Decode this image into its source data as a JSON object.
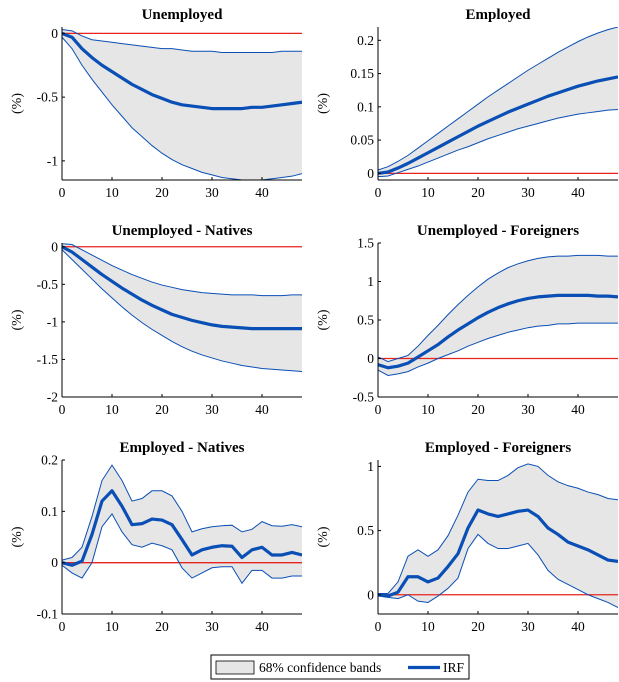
{
  "legend": {
    "band_label": "68% confidence bands",
    "irf_label": "IRF"
  },
  "colors": {
    "band": "#e6e6e6",
    "irf": "#0a4fb5",
    "zero": "#e8231e",
    "axis": "#000000"
  },
  "chart_data": [
    {
      "type": "area",
      "title": "Unemployed",
      "ylabel": "(%)",
      "xlim": [
        0,
        48
      ],
      "ylim": [
        -1.15,
        0.05
      ],
      "xticks": [
        0,
        10,
        20,
        30,
        40
      ],
      "xticklabels": [
        "0",
        "10",
        "20",
        "30",
        "40"
      ],
      "yticks": [
        -1,
        -0.5,
        0
      ],
      "yticklabels": [
        "-1",
        "-0.5",
        "0"
      ],
      "x": [
        0,
        2,
        4,
        6,
        8,
        10,
        12,
        14,
        16,
        18,
        20,
        22,
        24,
        26,
        28,
        30,
        32,
        34,
        36,
        38,
        40,
        42,
        44,
        46,
        48
      ],
      "series": [
        {
          "role": "irf",
          "values": [
            0,
            -0.03,
            -0.12,
            -0.19,
            -0.25,
            -0.3,
            -0.35,
            -0.4,
            -0.44,
            -0.48,
            -0.51,
            -0.54,
            -0.56,
            -0.57,
            -0.58,
            -0.59,
            -0.59,
            -0.59,
            -0.59,
            -0.58,
            -0.58,
            -0.57,
            -0.56,
            -0.55,
            -0.54
          ]
        },
        {
          "role": "upper",
          "values": [
            0.03,
            0.02,
            -0.02,
            -0.05,
            -0.06,
            -0.07,
            -0.08,
            -0.09,
            -0.1,
            -0.11,
            -0.12,
            -0.12,
            -0.13,
            -0.14,
            -0.14,
            -0.14,
            -0.15,
            -0.15,
            -0.15,
            -0.15,
            -0.15,
            -0.15,
            -0.14,
            -0.14,
            -0.14
          ]
        },
        {
          "role": "lower",
          "values": [
            -0.03,
            -0.12,
            -0.25,
            -0.36,
            -0.46,
            -0.56,
            -0.65,
            -0.74,
            -0.81,
            -0.88,
            -0.94,
            -0.99,
            -1.03,
            -1.06,
            -1.09,
            -1.11,
            -1.13,
            -1.14,
            -1.15,
            -1.15,
            -1.15,
            -1.14,
            -1.13,
            -1.12,
            -1.1
          ]
        }
      ]
    },
    {
      "type": "area",
      "title": "Employed",
      "ylabel": "(%)",
      "xlim": [
        0,
        48
      ],
      "ylim": [
        -0.01,
        0.22
      ],
      "xticks": [
        0,
        10,
        20,
        30,
        40
      ],
      "xticklabels": [
        "0",
        "10",
        "20",
        "30",
        "40"
      ],
      "yticks": [
        0,
        0.05,
        0.1,
        0.15,
        0.2
      ],
      "yticklabels": [
        "0",
        "0.05",
        "0.1",
        "0.15",
        "0.2"
      ],
      "x": [
        0,
        2,
        4,
        6,
        8,
        10,
        12,
        14,
        16,
        18,
        20,
        22,
        24,
        26,
        28,
        30,
        32,
        34,
        36,
        38,
        40,
        42,
        44,
        46,
        48
      ],
      "series": [
        {
          "role": "irf",
          "values": [
            0,
            0.002,
            0.008,
            0.015,
            0.023,
            0.031,
            0.039,
            0.047,
            0.055,
            0.063,
            0.071,
            0.078,
            0.085,
            0.092,
            0.098,
            0.104,
            0.11,
            0.116,
            0.121,
            0.126,
            0.131,
            0.135,
            0.139,
            0.142,
            0.145
          ]
        },
        {
          "role": "upper",
          "values": [
            0.005,
            0.01,
            0.018,
            0.027,
            0.038,
            0.049,
            0.06,
            0.071,
            0.082,
            0.093,
            0.104,
            0.115,
            0.125,
            0.135,
            0.145,
            0.155,
            0.164,
            0.173,
            0.182,
            0.19,
            0.198,
            0.205,
            0.211,
            0.216,
            0.22
          ]
        },
        {
          "role": "lower",
          "values": [
            -0.005,
            -0.004,
            0.001,
            0.006,
            0.011,
            0.017,
            0.023,
            0.029,
            0.035,
            0.04,
            0.046,
            0.052,
            0.057,
            0.062,
            0.067,
            0.071,
            0.075,
            0.079,
            0.083,
            0.086,
            0.089,
            0.091,
            0.093,
            0.095,
            0.096
          ]
        }
      ]
    },
    {
      "type": "area",
      "title": "Unemployed - Natives",
      "ylabel": "(%)",
      "xlim": [
        0,
        48
      ],
      "ylim": [
        -2,
        0.05
      ],
      "xticks": [
        0,
        10,
        20,
        30,
        40
      ],
      "xticklabels": [
        "0",
        "10",
        "20",
        "30",
        "40"
      ],
      "yticks": [
        -2,
        -1.5,
        -1,
        -0.5,
        0
      ],
      "yticklabels": [
        "-2",
        "-1.5",
        "-1",
        "-0.5",
        "0"
      ],
      "x": [
        0,
        2,
        4,
        6,
        8,
        10,
        12,
        14,
        16,
        18,
        20,
        22,
        24,
        26,
        28,
        30,
        32,
        34,
        36,
        38,
        40,
        42,
        44,
        46,
        48
      ],
      "series": [
        {
          "role": "irf",
          "values": [
            0,
            -0.07,
            -0.17,
            -0.27,
            -0.37,
            -0.46,
            -0.55,
            -0.63,
            -0.71,
            -0.78,
            -0.84,
            -0.9,
            -0.94,
            -0.98,
            -1.01,
            -1.04,
            -1.06,
            -1.07,
            -1.08,
            -1.09,
            -1.09,
            -1.09,
            -1.09,
            -1.09,
            -1.09
          ]
        },
        {
          "role": "upper",
          "values": [
            0.04,
            0.03,
            -0.04,
            -0.11,
            -0.18,
            -0.25,
            -0.31,
            -0.37,
            -0.42,
            -0.47,
            -0.51,
            -0.54,
            -0.57,
            -0.59,
            -0.61,
            -0.62,
            -0.63,
            -0.64,
            -0.64,
            -0.64,
            -0.65,
            -0.65,
            -0.65,
            -0.64,
            -0.64
          ]
        },
        {
          "role": "lower",
          "values": [
            -0.04,
            -0.17,
            -0.3,
            -0.43,
            -0.56,
            -0.68,
            -0.8,
            -0.91,
            -1.01,
            -1.1,
            -1.18,
            -1.26,
            -1.33,
            -1.39,
            -1.44,
            -1.48,
            -1.52,
            -1.55,
            -1.58,
            -1.6,
            -1.62,
            -1.63,
            -1.64,
            -1.65,
            -1.66
          ]
        }
      ]
    },
    {
      "type": "area",
      "title": "Unemployed - Foreigners",
      "ylabel": "(%)",
      "xlim": [
        0,
        48
      ],
      "ylim": [
        -0.5,
        1.5
      ],
      "xticks": [
        0,
        10,
        20,
        30,
        40
      ],
      "xticklabels": [
        "0",
        "10",
        "20",
        "30",
        "40"
      ],
      "yticks": [
        -0.5,
        0,
        0.5,
        1,
        1.5
      ],
      "yticklabels": [
        "-0.5",
        "0",
        "0.5",
        "1",
        "1.5"
      ],
      "x": [
        0,
        2,
        4,
        6,
        8,
        10,
        12,
        14,
        16,
        18,
        20,
        22,
        24,
        26,
        28,
        30,
        32,
        34,
        36,
        38,
        40,
        42,
        44,
        46,
        48
      ],
      "series": [
        {
          "role": "irf",
          "values": [
            -0.08,
            -0.12,
            -0.1,
            -0.06,
            0.02,
            0.1,
            0.18,
            0.28,
            0.37,
            0.45,
            0.53,
            0.6,
            0.66,
            0.71,
            0.75,
            0.78,
            0.8,
            0.81,
            0.82,
            0.82,
            0.82,
            0.82,
            0.81,
            0.81,
            0.8
          ]
        },
        {
          "role": "upper",
          "values": [
            0.02,
            -0.04,
            0.0,
            0.04,
            0.16,
            0.3,
            0.43,
            0.57,
            0.7,
            0.82,
            0.93,
            1.03,
            1.11,
            1.18,
            1.23,
            1.27,
            1.3,
            1.32,
            1.33,
            1.33,
            1.34,
            1.34,
            1.34,
            1.33,
            1.33
          ]
        },
        {
          "role": "lower",
          "values": [
            -0.15,
            -0.22,
            -0.2,
            -0.17,
            -0.11,
            -0.06,
            0.0,
            0.05,
            0.1,
            0.16,
            0.21,
            0.26,
            0.3,
            0.34,
            0.37,
            0.4,
            0.42,
            0.43,
            0.45,
            0.45,
            0.46,
            0.46,
            0.46,
            0.46,
            0.46
          ]
        }
      ]
    },
    {
      "type": "area",
      "title": "Employed - Natives",
      "ylabel": "(%)",
      "xlim": [
        0,
        48
      ],
      "ylim": [
        -0.1,
        0.2
      ],
      "xticks": [
        0,
        10,
        20,
        30,
        40
      ],
      "xticklabels": [
        "0",
        "10",
        "20",
        "30",
        "40"
      ],
      "yticks": [
        -0.1,
        0,
        0.1,
        0.2
      ],
      "yticklabels": [
        "-0.1",
        "0",
        "0.1",
        "0.2"
      ],
      "x": [
        0,
        2,
        4,
        6,
        8,
        10,
        12,
        14,
        16,
        18,
        20,
        22,
        24,
        26,
        28,
        30,
        32,
        34,
        36,
        38,
        40,
        42,
        44,
        46,
        48
      ],
      "series": [
        {
          "role": "irf",
          "values": [
            0,
            -0.005,
            0.003,
            0.055,
            0.12,
            0.14,
            0.11,
            0.074,
            0.076,
            0.085,
            0.083,
            0.074,
            0.045,
            0.015,
            0.025,
            0.03,
            0.033,
            0.032,
            0.01,
            0.025,
            0.03,
            0.015,
            0.015,
            0.02,
            0.015
          ]
        },
        {
          "role": "upper",
          "values": [
            0.005,
            0.01,
            0.03,
            0.09,
            0.16,
            0.19,
            0.16,
            0.12,
            0.125,
            0.14,
            0.14,
            0.13,
            0.1,
            0.06,
            0.066,
            0.07,
            0.072,
            0.073,
            0.06,
            0.065,
            0.08,
            0.072,
            0.071,
            0.074,
            0.07
          ]
        },
        {
          "role": "lower",
          "values": [
            -0.005,
            -0.02,
            -0.03,
            0.0,
            0.07,
            0.095,
            0.06,
            0.035,
            0.03,
            0.038,
            0.033,
            0.025,
            -0.01,
            -0.03,
            -0.02,
            -0.01,
            -0.008,
            -0.008,
            -0.04,
            -0.015,
            -0.015,
            -0.03,
            -0.03,
            -0.026,
            -0.026
          ]
        }
      ]
    },
    {
      "type": "area",
      "title": "Employed - Foreigners",
      "ylabel": "(%)",
      "xlim": [
        0,
        48
      ],
      "ylim": [
        -0.15,
        1.05
      ],
      "xticks": [
        0,
        10,
        20,
        30,
        40
      ],
      "xticklabels": [
        "0",
        "10",
        "20",
        "30",
        "40"
      ],
      "yticks": [
        0,
        0.5,
        1
      ],
      "yticklabels": [
        "0",
        "0.5",
        "1"
      ],
      "x": [
        0,
        2,
        4,
        6,
        8,
        10,
        12,
        14,
        16,
        18,
        20,
        22,
        24,
        26,
        28,
        30,
        32,
        34,
        36,
        38,
        40,
        42,
        44,
        46,
        48
      ],
      "series": [
        {
          "role": "irf",
          "values": [
            0,
            -0.01,
            0.02,
            0.14,
            0.14,
            0.1,
            0.13,
            0.22,
            0.32,
            0.52,
            0.66,
            0.63,
            0.61,
            0.63,
            0.65,
            0.66,
            0.61,
            0.52,
            0.47,
            0.41,
            0.38,
            0.35,
            0.31,
            0.27,
            0.26
          ]
        },
        {
          "role": "upper",
          "values": [
            0.01,
            0.01,
            0.1,
            0.3,
            0.35,
            0.3,
            0.35,
            0.46,
            0.62,
            0.8,
            0.9,
            0.89,
            0.89,
            0.93,
            0.99,
            1.02,
            1.0,
            0.93,
            0.88,
            0.85,
            0.83,
            0.8,
            0.78,
            0.75,
            0.74
          ]
        },
        {
          "role": "lower",
          "values": [
            -0.01,
            -0.02,
            -0.03,
            0.0,
            -0.05,
            -0.06,
            -0.01,
            0.05,
            0.13,
            0.36,
            0.47,
            0.4,
            0.36,
            0.36,
            0.38,
            0.4,
            0.31,
            0.19,
            0.12,
            0.08,
            0.04,
            0.0,
            -0.03,
            -0.06,
            -0.1
          ]
        }
      ]
    }
  ]
}
